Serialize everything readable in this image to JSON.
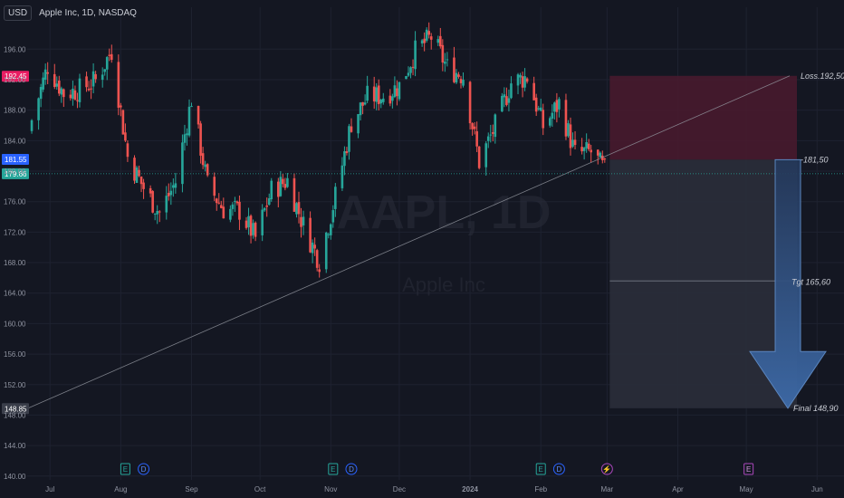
{
  "header": {
    "currency": "USD",
    "symbol_title": "Apple Inc, 1D, NASDAQ"
  },
  "watermark": {
    "ticker": "AAPL, 1D",
    "name": "Apple Inc"
  },
  "colors": {
    "background": "#141722",
    "up": "#26a69a",
    "down": "#ef5350",
    "grid": "#1e2230",
    "loss_zone": "#4a1a2e",
    "target_zone": "#2a2e3a",
    "arrow": "#2f4c74",
    "loss_tag": "#e91e63",
    "entry_tag": "#2962ff",
    "last_tag": "#26a69a",
    "low_tag": "#3a3e4a"
  },
  "chart_data": {
    "type": "candlestick",
    "title": "Apple Inc, 1D, NASDAQ",
    "y_ticks": [
      "196.00",
      "192.00",
      "188.00",
      "184.00",
      "180.00",
      "176.00",
      "172.00",
      "168.00",
      "164.00",
      "160.00",
      "156.00",
      "152.00",
      "148.00",
      "144.00",
      "140.00"
    ],
    "y_tick_values": [
      196,
      192,
      188,
      184,
      180,
      176,
      172,
      168,
      164,
      160,
      156,
      152,
      148,
      144,
      140
    ],
    "x_ticks": [
      "Jul",
      "Aug",
      "Sep",
      "Oct",
      "Nov",
      "Dec",
      "2024",
      "Feb",
      "Mar",
      "Apr",
      "May",
      "Jun"
    ],
    "x_tick_dates": [
      "2023-07-01",
      "2023-08-01",
      "2023-09-01",
      "2023-10-01",
      "2023-11-01",
      "2023-12-01",
      "2024-01-01",
      "2024-02-01",
      "2024-03-01",
      "2024-04-01",
      "2024-05-01",
      "2024-06-01"
    ],
    "xlim": [
      "2023-06-21",
      "2024-06-12"
    ],
    "ylim": [
      139.5,
      201.5
    ],
    "close_points": [
      [
        "2023-06-23",
        186.7
      ],
      [
        "2023-06-30",
        193.8
      ],
      [
        "2023-07-07",
        190.2
      ],
      [
        "2023-07-14",
        190.7
      ],
      [
        "2023-07-21",
        191.9
      ],
      [
        "2023-07-28",
        195.8
      ],
      [
        "2023-08-04",
        181.9
      ],
      [
        "2023-08-11",
        177.8
      ],
      [
        "2023-08-18",
        174.5
      ],
      [
        "2023-08-25",
        178.6
      ],
      [
        "2023-09-01",
        189.5
      ],
      [
        "2023-09-08",
        178.2
      ],
      [
        "2023-09-15",
        175.0
      ],
      [
        "2023-09-22",
        174.8
      ],
      [
        "2023-09-29",
        171.2
      ],
      [
        "2023-10-06",
        177.5
      ],
      [
        "2023-10-13",
        178.8
      ],
      [
        "2023-10-20",
        172.9
      ],
      [
        "2023-10-27",
        168.2
      ],
      [
        "2023-11-03",
        176.7
      ],
      [
        "2023-11-10",
        186.4
      ],
      [
        "2023-11-17",
        189.7
      ],
      [
        "2023-11-24",
        189.9
      ],
      [
        "2023-12-01",
        191.2
      ],
      [
        "2023-12-08",
        195.7
      ],
      [
        "2023-12-15",
        197.6
      ],
      [
        "2023-12-22",
        193.6
      ],
      [
        "2023-12-29",
        192.5
      ],
      [
        "2024-01-05",
        181.2
      ],
      [
        "2024-01-12",
        185.9
      ],
      [
        "2024-01-19",
        191.6
      ],
      [
        "2024-01-26",
        192.4
      ],
      [
        "2024-02-02",
        185.9
      ],
      [
        "2024-02-09",
        188.9
      ],
      [
        "2024-02-16",
        182.3
      ],
      [
        "2024-02-23",
        182.5
      ],
      [
        "2024-03-01",
        179.7
      ]
    ],
    "trendline": {
      "from": [
        "2023-06-21",
        148.85
      ],
      "to": [
        "2024-05-20",
        192.5
      ]
    },
    "trade_setup": {
      "start": "2024-03-01",
      "end": "2024-05-20",
      "loss_level": 192.5,
      "entry_level": 181.5,
      "target_level": 165.6,
      "final_level": 148.9,
      "labels": {
        "loss": "Loss.192,50",
        "entry": "-181,50",
        "target": "Tgt 165,60",
        "final": "Final 148,90"
      }
    },
    "price_tags": [
      {
        "text": "192.45",
        "value": 192.45,
        "color": "#e91e63"
      },
      {
        "text": "181.55",
        "value": 181.55,
        "color": "#2962ff"
      },
      {
        "text": "179.66",
        "value": 179.66,
        "color": "#26a69a"
      },
      {
        "text": "148.85",
        "value": 148.85,
        "color": "#3a3e4a"
      }
    ],
    "last_price_line": 179.66,
    "events": [
      {
        "date": "2023-08-03",
        "label": "E",
        "kind": "earnings"
      },
      {
        "date": "2023-08-11",
        "label": "D",
        "kind": "dividend"
      },
      {
        "date": "2023-11-02",
        "label": "E",
        "kind": "earnings"
      },
      {
        "date": "2023-11-10",
        "label": "D",
        "kind": "dividend"
      },
      {
        "date": "2024-02-01",
        "label": "E",
        "kind": "earnings"
      },
      {
        "date": "2024-02-09",
        "label": "D",
        "kind": "dividend"
      },
      {
        "date": "2024-03-01",
        "label": "⚡",
        "kind": "split"
      },
      {
        "date": "2024-05-02",
        "label": "E",
        "kind": "earnings-upcoming"
      }
    ]
  }
}
